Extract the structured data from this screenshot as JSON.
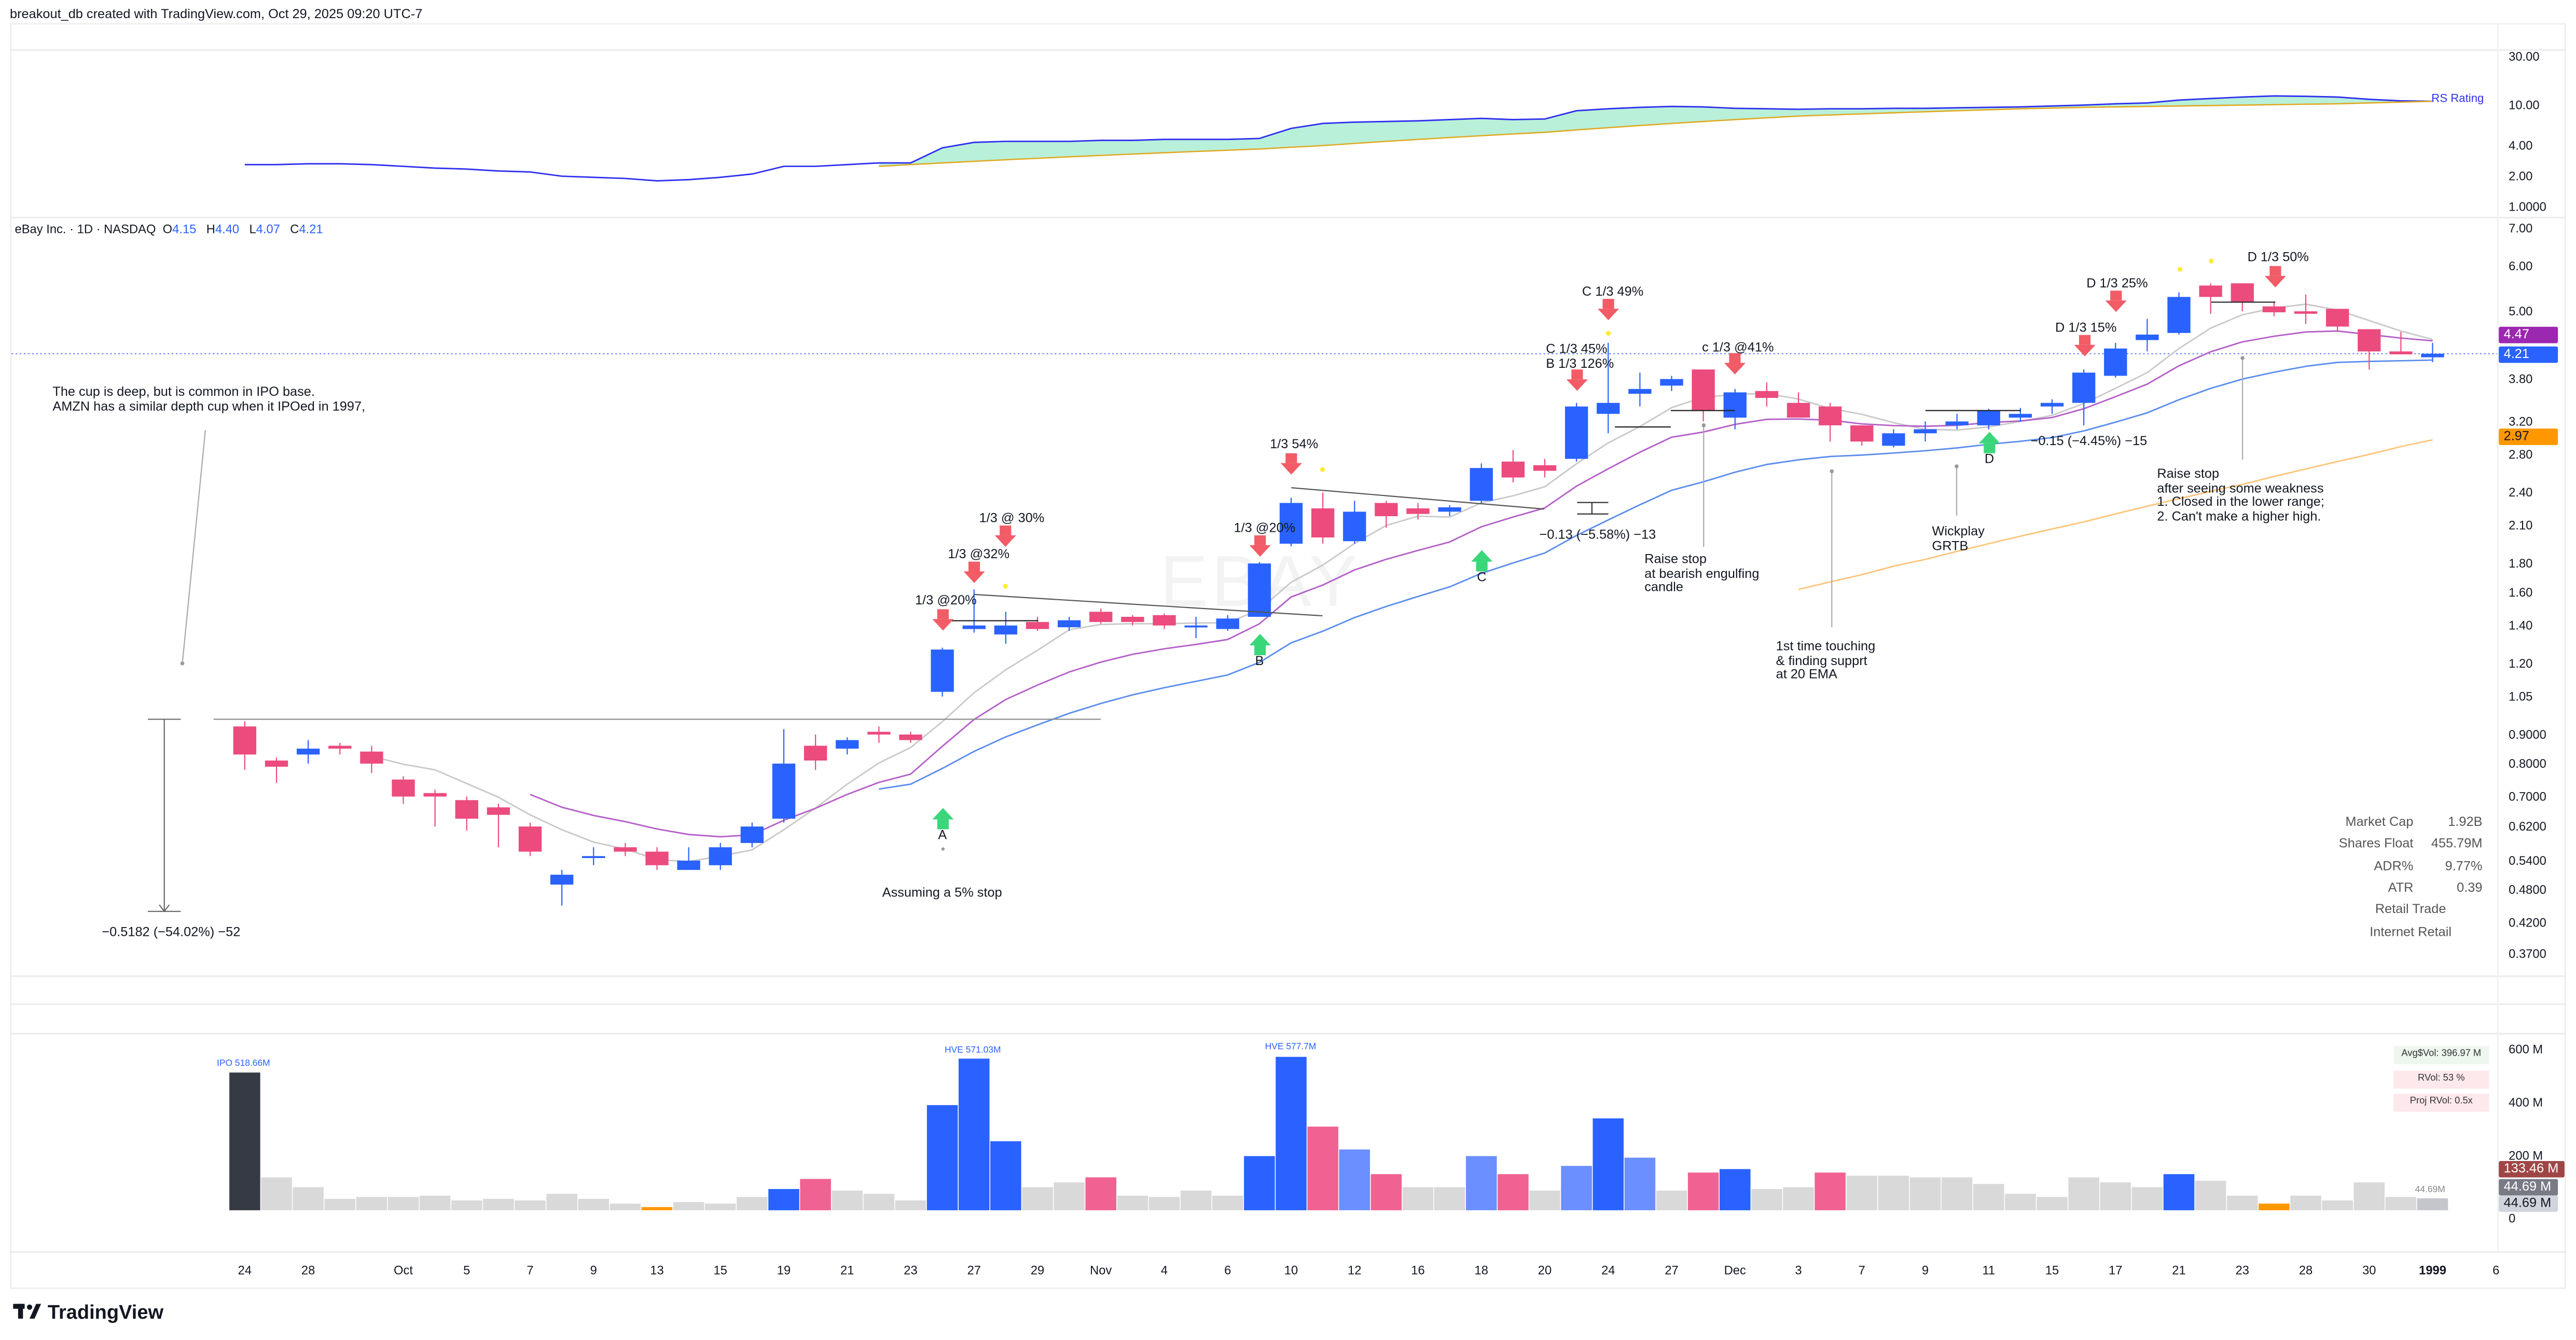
{
  "header": {
    "credit": "breakout_db created with TradingView.com, Oct 29, 2025 09:20 UTC-7"
  },
  "legend": {
    "title": "eBay Inc. · 1D · NASDAQ",
    "o_label": "O",
    "o": "4.15",
    "h_label": "H",
    "h": "4.40",
    "l_label": "L",
    "l": "4.07",
    "c_label": "C",
    "c": "4.21"
  },
  "watermark": "EBAY",
  "rs_pane": {
    "label": "RS Rating",
    "axis_labels": [
      "30.00",
      "10.00",
      "4.00",
      "2.00",
      "1.0000"
    ],
    "axis_values": [
      30,
      10,
      4,
      2,
      1
    ]
  },
  "price_axis": {
    "labels": [
      "7.00",
      "6.00",
      "5.00",
      "3.80",
      "3.20",
      "2.80",
      "2.40",
      "2.10",
      "1.80",
      "1.60",
      "1.40",
      "1.20",
      "1.05",
      "0.9000",
      "0.8000",
      "0.7000",
      "0.6200",
      "0.5400",
      "0.4800",
      "0.4200",
      "0.3700"
    ],
    "values": [
      7,
      6,
      5,
      3.8,
      3.2,
      2.8,
      2.4,
      2.1,
      1.8,
      1.6,
      1.4,
      1.2,
      1.05,
      0.9,
      0.8,
      0.7,
      0.62,
      0.54,
      0.48,
      0.42,
      0.37
    ],
    "scale": "log"
  },
  "price_badges": {
    "ema10": "4.47",
    "last": "4.21",
    "ma_long": "2.97"
  },
  "colors": {
    "up": "#2962ff",
    "down": "#ec4b7d",
    "up_light": "#6b8fff",
    "vol_down": "#f06292",
    "normal": "#d9d9d9",
    "low": "#ff9800",
    "ipo": "#363a45",
    "current": "#c4c6cc",
    "sma5": "#c9c9c9",
    "ema10": "#b45fc8",
    "ema21": "#5b8def",
    "ma_long": "#ffc47a",
    "rs_line": "#3030f0",
    "rs_ma": "#e0a820",
    "rs_fill": "#a8ecd0",
    "badge_ema10": "#9c27b0",
    "badge_last": "#2962ff",
    "badge_ma_long": "#ff9800",
    "badge_vol": "#9e4646",
    "badge_vol2": "#787b86",
    "badge_vol3": "#d1d4dc"
  },
  "fundamentals": {
    "rows": [
      {
        "label": "Market Cap",
        "value": "1.92B"
      },
      {
        "label": "Shares Float",
        "value": "455.79M"
      },
      {
        "label": "ADR%",
        "value": "9.77%"
      },
      {
        "label": "ATR",
        "value": "0.39"
      }
    ],
    "sector": "Retail Trade",
    "industry": "Internet Retail"
  },
  "volume_pane": {
    "axis_labels": [
      "600 M",
      "400 M",
      "200 M",
      "0"
    ],
    "axis_values": [
      600,
      400,
      200,
      0
    ],
    "badges": [
      "133.46 M",
      "44.69 M",
      "44.69 M"
    ],
    "avg_dollar_vol": "Avg$Vol: 396.97 M",
    "rvol": "RVol: 53 %",
    "proj_rvol": "Proj RVol: 0.5x",
    "ipo_label": "IPO 518.66M",
    "hve1_label": "HVE 571.03M",
    "hve2_label": "HVE 577.7M",
    "last_label": "44.69M"
  },
  "annotations": {
    "cup_note": "The cup is deep, but is common in IPO base.\nAMZN has a similar depth cup when it IPOed in 1997,",
    "cup_measure": "−0.5182 (−54.02%) −52",
    "stop_note": "Assuming a 5% stop",
    "a": "A",
    "b": "B",
    "c": "C",
    "d": "D",
    "s1": "1/3 @20%",
    "s2": "1/3 @32%",
    "s3": "1/3 @ 30%",
    "s4": "1/3 @20%",
    "s5": "1/3 54%",
    "s6": "C 1/3 45%\nB 1/3 126%",
    "s7": "C 1/3 49%",
    "s8": "c 1/3 @41%",
    "measure2": "−0.13 (−5.58%) −13",
    "raise1": "Raise stop\nat bearish engulfing\ncandle",
    "touch": "1st time touching\n& finding supprt\nat 20 EMA",
    "wick": "Wickplay\nGRTB",
    "s9": "D 1/3 15%",
    "measure3": "−0.15 (−4.45%) −15",
    "s10": "D 1/3 25%",
    "s11": "D 1/3 50%",
    "raise2": "Raise stop\nafter seeing some weakness\n1. Closed in the lower range;\n2. Can't make a higher high."
  },
  "brand": "TradingView",
  "chart_data": {
    "type": "candlestick",
    "title": "eBay Inc. · 1D · NASDAQ",
    "x_ticks": [
      {
        "label": "24",
        "bar": 0
      },
      {
        "label": "28",
        "bar": 2
      },
      {
        "label": "Oct",
        "bar": 5
      },
      {
        "label": "5",
        "bar": 7
      },
      {
        "label": "7",
        "bar": 9
      },
      {
        "label": "9",
        "bar": 11
      },
      {
        "label": "13",
        "bar": 13
      },
      {
        "label": "15",
        "bar": 15
      },
      {
        "label": "19",
        "bar": 17
      },
      {
        "label": "21",
        "bar": 19
      },
      {
        "label": "23",
        "bar": 21
      },
      {
        "label": "27",
        "bar": 23
      },
      {
        "label": "29",
        "bar": 25
      },
      {
        "label": "Nov",
        "bar": 27
      },
      {
        "label": "4",
        "bar": 29
      },
      {
        "label": "6",
        "bar": 31
      },
      {
        "label": "10",
        "bar": 33
      },
      {
        "label": "12",
        "bar": 35
      },
      {
        "label": "16",
        "bar": 37
      },
      {
        "label": "18",
        "bar": 39
      },
      {
        "label": "20",
        "bar": 41
      },
      {
        "label": "24",
        "bar": 43
      },
      {
        "label": "27",
        "bar": 45
      },
      {
        "label": "Dec",
        "bar": 47
      },
      {
        "label": "3",
        "bar": 49
      },
      {
        "label": "7",
        "bar": 51
      },
      {
        "label": "9",
        "bar": 53
      },
      {
        "label": "11",
        "bar": 55
      },
      {
        "label": "15",
        "bar": 57
      },
      {
        "label": "17",
        "bar": 59
      },
      {
        "label": "21",
        "bar": 61
      },
      {
        "label": "23",
        "bar": 63
      },
      {
        "label": "28",
        "bar": 65
      },
      {
        "label": "30",
        "bar": 67
      },
      {
        "label": "1999",
        "bar": 69
      },
      {
        "label": "6",
        "bar": 71
      }
    ],
    "open": [
      0.93,
      0.81,
      0.83,
      0.86,
      0.84,
      0.75,
      0.71,
      0.69,
      0.67,
      0.62,
      0.49,
      0.55,
      0.57,
      0.56,
      0.52,
      0.53,
      0.58,
      0.64,
      0.86,
      0.85,
      0.91,
      0.9,
      1.07,
      1.38,
      1.35,
      1.42,
      1.39,
      1.48,
      1.45,
      1.46,
      1.39,
      1.38,
      1.45,
      1.95,
      2.25,
      1.97,
      2.3,
      2.25,
      2.22,
      2.32,
      2.72,
      2.68,
      2.75,
      3.3,
      3.58,
      3.7,
      3.95,
      3.25,
      3.62,
      3.45,
      3.4,
      3.15,
      2.9,
      3.05,
      3.15,
      3.15,
      3.25,
      3.4,
      3.45,
      3.85,
      4.45,
      4.58,
      5.55,
      5.6,
      5.1,
      5.0,
      5.05,
      4.65,
      4.25,
      4.15
    ],
    "high": [
      0.95,
      0.82,
      0.88,
      0.87,
      0.86,
      0.76,
      0.72,
      0.7,
      0.68,
      0.63,
      0.52,
      0.57,
      0.58,
      0.57,
      0.57,
      0.58,
      0.63,
      0.92,
      0.9,
      0.89,
      0.93,
      0.91,
      1.28,
      1.62,
      1.48,
      1.45,
      1.45,
      1.5,
      1.46,
      1.47,
      1.45,
      1.46,
      1.81,
      2.35,
      2.4,
      2.32,
      2.32,
      2.3,
      2.28,
      2.7,
      2.85,
      2.75,
      3.45,
      4.4,
      3.9,
      3.85,
      3.95,
      3.65,
      3.75,
      3.6,
      3.45,
      3.15,
      3.1,
      3.2,
      3.3,
      3.37,
      3.38,
      3.5,
      3.95,
      4.4,
      4.85,
      5.4,
      5.6,
      5.6,
      5.2,
      5.35,
      5.05,
      4.65,
      4.6,
      4.4
    ],
    "low": [
      0.78,
      0.74,
      0.8,
      0.83,
      0.77,
      0.68,
      0.62,
      0.61,
      0.57,
      0.55,
      0.45,
      0.53,
      0.55,
      0.52,
      0.52,
      0.52,
      0.57,
      0.63,
      0.78,
      0.83,
      0.87,
      0.87,
      1.05,
      1.36,
      1.3,
      1.37,
      1.37,
      1.41,
      1.4,
      1.38,
      1.33,
      1.37,
      1.45,
      1.93,
      1.95,
      1.95,
      2.08,
      2.15,
      2.18,
      2.3,
      2.5,
      2.55,
      2.72,
      3.05,
      3.4,
      3.62,
      3.2,
      3.1,
      3.4,
      3.25,
      2.95,
      2.9,
      2.88,
      2.95,
      3.1,
      3.1,
      3.2,
      3.3,
      3.15,
      3.82,
      4.25,
      4.55,
      4.95,
      5.0,
      4.9,
      4.75,
      4.6,
      3.95,
      4.2,
      4.07
    ],
    "close": [
      0.83,
      0.79,
      0.85,
      0.85,
      0.8,
      0.7,
      0.7,
      0.64,
      0.65,
      0.56,
      0.51,
      0.55,
      0.56,
      0.53,
      0.54,
      0.57,
      0.62,
      0.8,
      0.81,
      0.88,
      0.9,
      0.88,
      1.27,
      1.4,
      1.4,
      1.38,
      1.43,
      1.42,
      1.42,
      1.4,
      1.4,
      1.44,
      1.8,
      2.3,
      2.0,
      2.22,
      2.18,
      2.2,
      2.26,
      2.65,
      2.55,
      2.62,
      3.4,
      3.45,
      3.65,
      3.8,
      3.35,
      3.6,
      3.52,
      3.25,
      3.15,
      2.95,
      3.05,
      3.1,
      3.2,
      3.35,
      3.3,
      3.45,
      3.9,
      4.3,
      4.55,
      5.3,
      5.3,
      5.2,
      4.98,
      4.95,
      4.7,
      4.25,
      4.2,
      4.21
    ],
    "volume_millions": [
      518.66,
      124,
      87,
      43,
      50,
      50,
      55,
      37,
      43,
      37,
      62,
      43,
      25,
      12,
      31,
      25,
      50,
      80,
      118,
      74,
      62,
      37,
      396,
      571.03,
      260,
      87,
      105,
      124,
      55,
      50,
      74,
      55,
      204,
      577.7,
      315,
      229,
      136,
      87,
      87,
      204,
      136,
      74,
      167,
      346,
      198,
      74,
      142,
      155,
      80,
      87,
      142,
      130,
      130,
      124,
      124,
      99,
      62,
      50,
      124,
      105,
      87,
      136,
      111,
      55,
      25,
      55,
      37,
      105,
      50,
      44.69
    ],
    "volume_color": [
      "ipo",
      "normal",
      "normal",
      "normal",
      "normal",
      "normal",
      "normal",
      "normal",
      "normal",
      "normal",
      "normal",
      "normal",
      "normal",
      "low",
      "normal",
      "normal",
      "normal",
      "up",
      "vol_down",
      "normal",
      "normal",
      "normal",
      "up",
      "up",
      "up",
      "normal",
      "normal",
      "vol_down",
      "normal",
      "normal",
      "normal",
      "normal",
      "up",
      "up",
      "vol_down",
      "up_light",
      "vol_down",
      "normal",
      "normal",
      "up_light",
      "vol_down",
      "normal",
      "up_light",
      "up",
      "up_light",
      "normal",
      "vol_down",
      "up",
      "normal",
      "normal",
      "vol_down",
      "normal",
      "normal",
      "normal",
      "normal",
      "normal",
      "normal",
      "normal",
      "normal",
      "normal",
      "normal",
      "up",
      "normal",
      "normal",
      "low",
      "normal",
      "normal",
      "normal",
      "normal",
      "current"
    ],
    "moving_averages": [
      {
        "kind": "SMA",
        "period": 5,
        "color_key": "sma5"
      },
      {
        "kind": "EMA",
        "period": 10,
        "color_key": "ema10"
      },
      {
        "kind": "EMA",
        "period": 21,
        "color_key": "ema21"
      }
    ],
    "ma_long": [
      null,
      null,
      null,
      null,
      null,
      null,
      null,
      null,
      null,
      null,
      null,
      null,
      null,
      null,
      null,
      null,
      null,
      null,
      null,
      null,
      null,
      null,
      null,
      null,
      null,
      null,
      null,
      null,
      null,
      null,
      null,
      null,
      null,
      null,
      null,
      null,
      null,
      null,
      null,
      null,
      null,
      null,
      null,
      null,
      null,
      null,
      null,
      null,
      null,
      1.62,
      1.67,
      1.72,
      1.78,
      1.83,
      1.89,
      1.95,
      2.01,
      2.07,
      2.13,
      2.2,
      2.27,
      2.34,
      2.41,
      2.48,
      2.56,
      2.64,
      2.72,
      2.8,
      2.89,
      2.97
    ],
    "rs_rating": [
      2.6,
      2.6,
      2.65,
      2.65,
      2.6,
      2.5,
      2.4,
      2.35,
      2.25,
      2.2,
      2.0,
      1.95,
      1.9,
      1.8,
      1.85,
      1.95,
      2.1,
      2.5,
      2.5,
      2.6,
      2.7,
      2.7,
      3.8,
      4.3,
      4.4,
      4.4,
      4.4,
      4.5,
      4.5,
      4.6,
      4.6,
      4.6,
      4.7,
      5.9,
      6.6,
      6.8,
      6.9,
      7.0,
      7.2,
      7.4,
      7.2,
      7.3,
      8.8,
      9.2,
      9.5,
      9.7,
      9.6,
      9.3,
      9.2,
      9.1,
      9.2,
      9.2,
      9.3,
      9.3,
      9.4,
      9.5,
      9.6,
      9.8,
      10.0,
      10.3,
      10.5,
      11.2,
      11.6,
      12.0,
      12.3,
      12.2,
      12.0,
      11.4,
      11.0,
      10.9
    ],
    "rs_rating_ma": [
      null,
      null,
      null,
      null,
      null,
      null,
      null,
      null,
      null,
      null,
      null,
      null,
      null,
      null,
      null,
      null,
      null,
      null,
      null,
      null,
      2.5,
      2.6,
      2.7,
      2.8,
      2.9,
      3.0,
      3.1,
      3.2,
      3.3,
      3.4,
      3.5,
      3.6,
      3.7,
      3.85,
      4.0,
      4.2,
      4.4,
      4.6,
      4.8,
      5.0,
      5.2,
      5.4,
      5.7,
      6.0,
      6.3,
      6.6,
      6.9,
      7.2,
      7.5,
      7.8,
      8.0,
      8.2,
      8.4,
      8.6,
      8.8,
      9.0,
      9.2,
      9.35,
      9.5,
      9.6,
      9.7,
      9.8,
      9.9,
      10.0,
      10.1,
      10.2,
      10.3,
      10.5,
      10.7,
      10.9
    ],
    "y_scale": "log",
    "grid": false
  }
}
